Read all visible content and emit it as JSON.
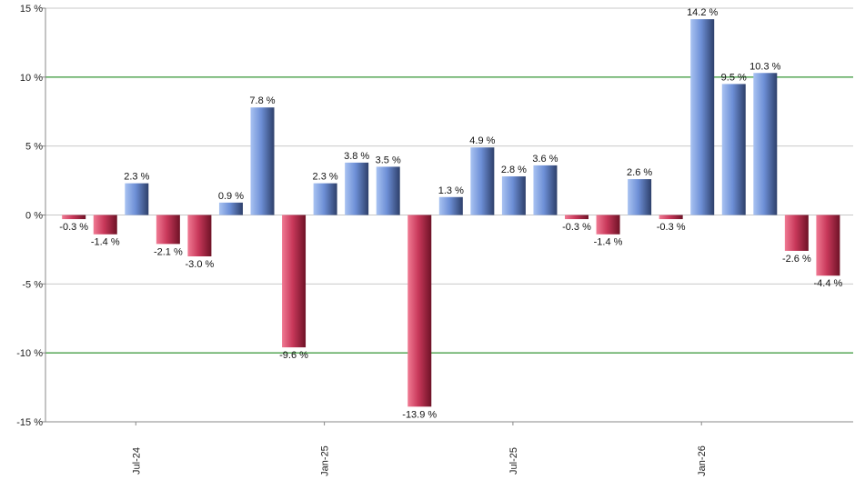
{
  "chart_data": {
    "type": "bar",
    "title": "",
    "xlabel": "",
    "ylabel": "",
    "ylim": [
      -15,
      15
    ],
    "y_ticks": [
      -15,
      -10,
      -5,
      0,
      5,
      10,
      15
    ],
    "y_tick_labels": [
      "-15 %",
      "-10 %",
      "-5 %",
      "0 %",
      "5 %",
      "10 %",
      "15 %"
    ],
    "major_gridlines": [
      -10,
      10
    ],
    "x_tick_labels": [
      {
        "label": "Jul-24",
        "index": 2
      },
      {
        "label": "Jan-25",
        "index": 8
      },
      {
        "label": "Jul-25",
        "index": 14
      },
      {
        "label": "Jan-26",
        "index": 20
      }
    ],
    "values": [
      -0.3,
      -1.4,
      2.3,
      -2.1,
      -3.0,
      0.9,
      7.8,
      -9.6,
      2.3,
      3.8,
      3.5,
      -13.9,
      1.3,
      4.9,
      2.8,
      3.6,
      -0.3,
      -1.4,
      2.6,
      -0.3,
      14.2,
      9.5,
      10.3,
      -2.6,
      -4.4
    ],
    "value_labels": [
      "-0.3 %",
      "-1.4 %",
      "2.3 %",
      "-2.1 %",
      "-3.0 %",
      "0.9 %",
      "7.8 %",
      "-9.6 %",
      "2.3 %",
      "3.8 %",
      "3.5 %",
      "-13.9 %",
      "1.3 %",
      "4.9 %",
      "2.8 %",
      "3.6 %",
      "-0.3 %",
      "-1.4 %",
      "2.6 %",
      "-0.3 %",
      "14.2 %",
      "9.5 %",
      "10.3 %",
      "-2.6 %",
      "-4.4 %"
    ],
    "colors": {
      "positive": "#6d8fd6",
      "positive_light": "#a9c3f2",
      "positive_dark": "#2d3f6a",
      "negative": "#c8385a",
      "negative_light": "#f07a93",
      "negative_dark": "#6e1226",
      "gridline_major": "#007a00",
      "gridline_minor": "#c8c8c8",
      "axis": "#888888"
    }
  }
}
